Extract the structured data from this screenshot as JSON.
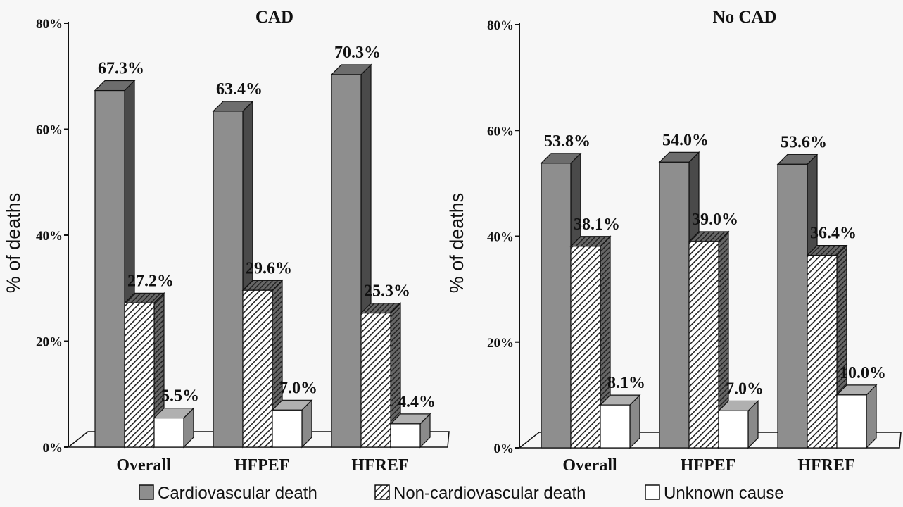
{
  "colors": {
    "cardiovascular": "#8e8e8e",
    "cardiovascular_side": "#4a4a4a",
    "non_cardiovascular": "#ffffff",
    "unknown": "#ffffff",
    "axis": "#111111"
  },
  "legend": {
    "cardiovascular": "Cardiovascular death",
    "non_cardiovascular": "Non-cardiovascular death",
    "unknown": "Unknown cause"
  },
  "chart_data": [
    {
      "type": "bar",
      "title": "CAD",
      "ylabel": "% of deaths",
      "ylim": [
        0,
        80
      ],
      "yticks": [
        "0%",
        "20%",
        "40%",
        "60%",
        "80%"
      ],
      "categories": [
        "Overall",
        "HFPEF",
        "HFREF"
      ],
      "series": [
        {
          "name": "Cardiovascular death",
          "values": [
            67.3,
            63.4,
            70.3
          ],
          "labels": [
            "67.3%",
            "63.4%",
            "70.3%"
          ]
        },
        {
          "name": "Non-cardiovascular death",
          "values": [
            27.2,
            29.6,
            25.3
          ],
          "labels": [
            "27.2%",
            "29.6%",
            "25.3%"
          ]
        },
        {
          "name": "Unknown cause",
          "values": [
            5.5,
            7.0,
            4.4
          ],
          "labels": [
            "5.5%",
            "7.0%",
            "4.4%"
          ]
        }
      ]
    },
    {
      "type": "bar",
      "title": "No CAD",
      "ylabel": "% of deaths",
      "ylim": [
        0,
        80
      ],
      "yticks": [
        "0%",
        "20%",
        "40%",
        "60%",
        "80%"
      ],
      "categories": [
        "Overall",
        "HFPEF",
        "HFREF"
      ],
      "series": [
        {
          "name": "Cardiovascular death",
          "values": [
            53.8,
            54.0,
            53.6
          ],
          "labels": [
            "53.8%",
            "54.0%",
            "53.6%"
          ]
        },
        {
          "name": "Non-cardiovascular death",
          "values": [
            38.1,
            39.0,
            36.4
          ],
          "labels": [
            "38.1%",
            "39.0%",
            "36.4%"
          ]
        },
        {
          "name": "Unknown cause",
          "values": [
            8.1,
            7.0,
            10.0
          ],
          "labels": [
            "8.1%",
            "7.0%",
            "10.0%"
          ]
        }
      ]
    }
  ]
}
